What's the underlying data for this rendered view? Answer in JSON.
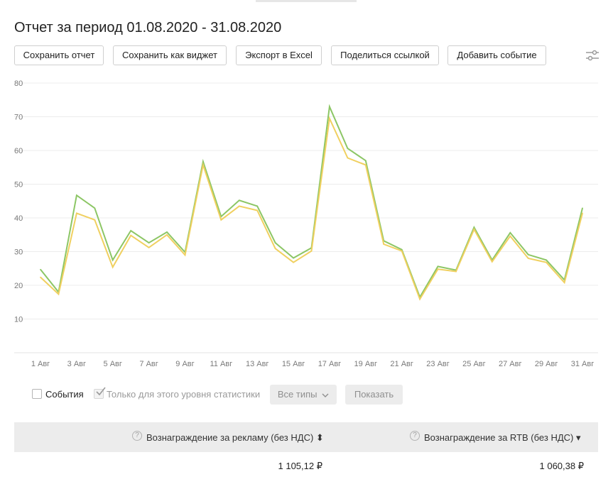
{
  "report": {
    "title": "Отчет за период 01.08.2020 - 31.08.2020"
  },
  "toolbar": {
    "save_report": "Сохранить отчет",
    "save_widget": "Сохранить как виджет",
    "export_excel": "Экспорт в Excel",
    "share_link": "Поделиться ссылкой",
    "add_event": "Добавить событие",
    "settings_icon": "sliders-icon"
  },
  "chart_data": {
    "type": "line",
    "x": [
      "1 Авг",
      "2 Авг",
      "3 Авг",
      "4 Авг",
      "5 Авг",
      "6 Авг",
      "7 Авг",
      "8 Авг",
      "9 Авг",
      "10 Авг",
      "11 Авг",
      "12 Авг",
      "13 Авг",
      "14 Авг",
      "15 Авг",
      "16 Авг",
      "17 Авг",
      "18 Авг",
      "19 Авг",
      "20 Авг",
      "21 Авг",
      "22 Авг",
      "23 Авг",
      "24 Авг",
      "25 Авг",
      "26 Авг",
      "27 Авг",
      "28 Авг",
      "29 Авг",
      "30 Авг",
      "31 Авг"
    ],
    "x_tick_labels": [
      "1 Авг",
      "3 Авг",
      "5 Авг",
      "7 Авг",
      "9 Авг",
      "11 Авг",
      "13 Авг",
      "15 Авг",
      "17 Авг",
      "19 Авг",
      "21 Авг",
      "23 Авг",
      "25 Авг",
      "27 Авг",
      "29 Авг",
      "31 Авг"
    ],
    "series": [
      {
        "color": "#8cc665",
        "values": [
          24.7,
          18.0,
          46.7,
          42.9,
          27.5,
          36.2,
          32.6,
          35.8,
          29.8,
          56.7,
          40.4,
          45.2,
          43.5,
          32.6,
          28.1,
          31.1,
          73.0,
          60.6,
          57.0,
          33.2,
          30.6,
          16.5,
          25.6,
          24.5,
          37.2,
          27.5,
          35.6,
          29.1,
          27.5,
          21.6,
          42.9
        ]
      },
      {
        "color": "#f0d060",
        "values": [
          22.4,
          17.4,
          41.4,
          39.4,
          25.4,
          34.8,
          31.2,
          35.0,
          29.0,
          55.7,
          39.4,
          43.5,
          42.2,
          30.9,
          26.8,
          30.2,
          69.5,
          57.8,
          55.7,
          32.2,
          30.2,
          15.9,
          24.8,
          24.1,
          36.6,
          27.0,
          34.6,
          28.0,
          26.8,
          20.8,
          41.4
        ]
      }
    ],
    "ylim": [
      0,
      80
    ],
    "y_ticks": [
      10,
      20,
      30,
      40,
      50,
      60,
      70,
      80
    ],
    "grid": true
  },
  "filters": {
    "events_label": "События",
    "level_only_label": "Только для этого уровня статистики",
    "types_select": "Все типы",
    "show_button": "Показать"
  },
  "table": {
    "col1_header": "Вознаграждение за рекламу (без НДС)",
    "col1_sort": "⬍",
    "col2_header": "Вознаграждение за RTB (без НДС)",
    "col2_sort": "▾",
    "help_mark": "?",
    "col1_value": "1 105,12 ₽",
    "col2_value": "1 060,38 ₽"
  }
}
